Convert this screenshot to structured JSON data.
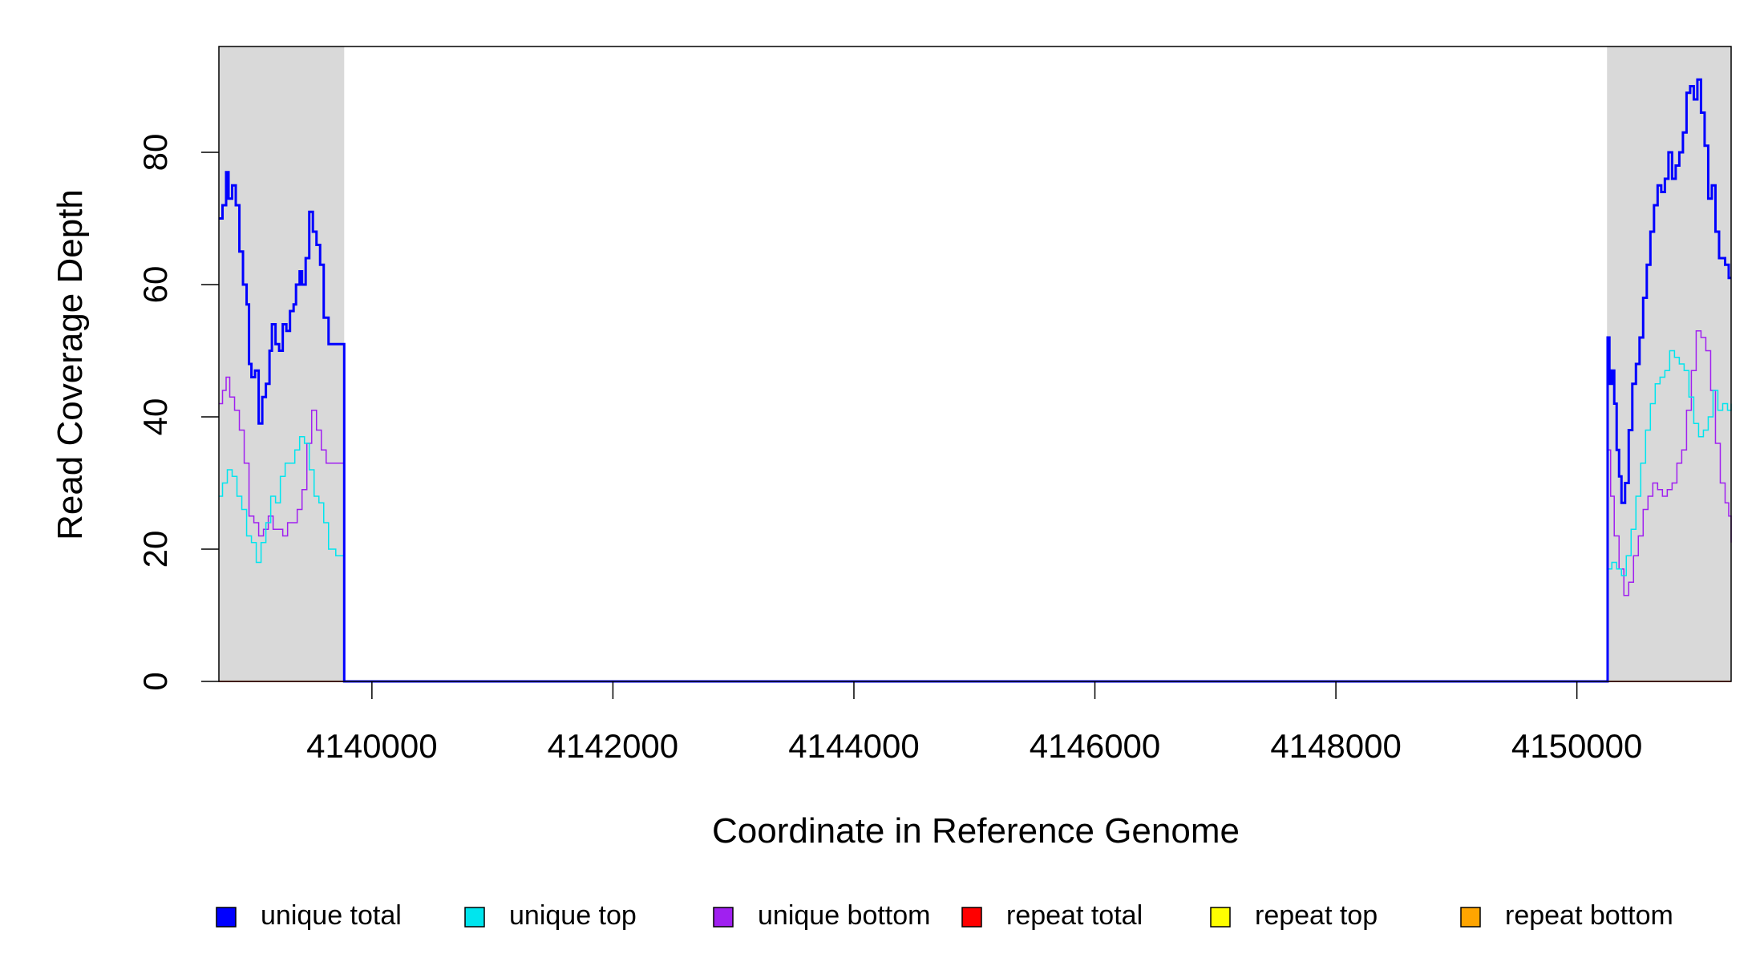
{
  "chart_data": {
    "type": "line",
    "xlabel": "Coordinate in Reference Genome",
    "ylabel": "Read Coverage Depth",
    "xlim": [
      4138730,
      4151280
    ],
    "ylim": [
      0,
      96
    ],
    "x_ticks": [
      4140000,
      4142000,
      4144000,
      4146000,
      4148000,
      4150000
    ],
    "y_ticks": [
      0,
      20,
      40,
      60,
      80
    ],
    "x_tick_labels": [
      "4140000",
      "4142000",
      "4144000",
      "4146000",
      "4148000",
      "4150000"
    ],
    "y_tick_labels": [
      "0",
      "20",
      "40",
      "60",
      "80"
    ],
    "shaded_regions": [
      [
        4138730,
        4139770
      ],
      [
        4150250,
        4151280
      ]
    ],
    "shade_color": "#d9d9d9",
    "series": [
      {
        "name": "unique total",
        "color": "#0000ff",
        "width": 3,
        "points": [
          [
            4138730,
            70
          ],
          [
            4138760,
            72
          ],
          [
            4138790,
            77
          ],
          [
            4138810,
            73
          ],
          [
            4138840,
            75
          ],
          [
            4138870,
            72
          ],
          [
            4138900,
            65
          ],
          [
            4138930,
            60
          ],
          [
            4138960,
            57
          ],
          [
            4138980,
            48
          ],
          [
            4139000,
            46
          ],
          [
            4139030,
            47
          ],
          [
            4139060,
            39
          ],
          [
            4139090,
            43
          ],
          [
            4139120,
            45
          ],
          [
            4139150,
            50
          ],
          [
            4139170,
            54
          ],
          [
            4139200,
            51
          ],
          [
            4139230,
            50
          ],
          [
            4139260,
            54
          ],
          [
            4139290,
            53
          ],
          [
            4139320,
            56
          ],
          [
            4139350,
            57
          ],
          [
            4139370,
            60
          ],
          [
            4139400,
            62
          ],
          [
            4139420,
            60
          ],
          [
            4139450,
            64
          ],
          [
            4139480,
            71
          ],
          [
            4139510,
            68
          ],
          [
            4139540,
            66
          ],
          [
            4139570,
            63
          ],
          [
            4139600,
            55
          ],
          [
            4139640,
            51
          ],
          [
            4139760,
            51
          ],
          [
            4139770,
            0
          ],
          [
            4150250,
            0
          ],
          [
            4150255,
            52
          ],
          [
            4150270,
            45
          ],
          [
            4150290,
            47
          ],
          [
            4150310,
            42
          ],
          [
            4150330,
            35
          ],
          [
            4150350,
            31
          ],
          [
            4150370,
            27
          ],
          [
            4150400,
            30
          ],
          [
            4150430,
            38
          ],
          [
            4150460,
            45
          ],
          [
            4150490,
            48
          ],
          [
            4150520,
            52
          ],
          [
            4150550,
            58
          ],
          [
            4150580,
            63
          ],
          [
            4150610,
            68
          ],
          [
            4150640,
            72
          ],
          [
            4150670,
            75
          ],
          [
            4150700,
            74
          ],
          [
            4150730,
            76
          ],
          [
            4150760,
            80
          ],
          [
            4150790,
            76
          ],
          [
            4150820,
            78
          ],
          [
            4150850,
            80
          ],
          [
            4150880,
            83
          ],
          [
            4150910,
            89
          ],
          [
            4150940,
            90
          ],
          [
            4150970,
            88
          ],
          [
            4151000,
            91
          ],
          [
            4151030,
            86
          ],
          [
            4151060,
            81
          ],
          [
            4151090,
            73
          ],
          [
            4151120,
            75
          ],
          [
            4151150,
            68
          ],
          [
            4151180,
            64
          ],
          [
            4151230,
            63
          ],
          [
            4151260,
            61
          ],
          [
            4151280,
            61
          ]
        ]
      },
      {
        "name": "unique top",
        "color": "#00e5ee",
        "width": 1.5,
        "points": [
          [
            4138730,
            28
          ],
          [
            4138760,
            30
          ],
          [
            4138800,
            32
          ],
          [
            4138840,
            31
          ],
          [
            4138880,
            28
          ],
          [
            4138920,
            26
          ],
          [
            4138960,
            22
          ],
          [
            4139000,
            21
          ],
          [
            4139040,
            18
          ],
          [
            4139080,
            21
          ],
          [
            4139120,
            24
          ],
          [
            4139160,
            28
          ],
          [
            4139200,
            27
          ],
          [
            4139240,
            31
          ],
          [
            4139280,
            33
          ],
          [
            4139320,
            33
          ],
          [
            4139360,
            35
          ],
          [
            4139400,
            37
          ],
          [
            4139440,
            36
          ],
          [
            4139480,
            32
          ],
          [
            4139520,
            28
          ],
          [
            4139560,
            27
          ],
          [
            4139600,
            24
          ],
          [
            4139640,
            20
          ],
          [
            4139700,
            19
          ],
          [
            4139760,
            19
          ],
          [
            4139770,
            0
          ],
          [
            4150250,
            0
          ],
          [
            4150255,
            17
          ],
          [
            4150290,
            18
          ],
          [
            4150330,
            17
          ],
          [
            4150370,
            16
          ],
          [
            4150410,
            19
          ],
          [
            4150450,
            23
          ],
          [
            4150490,
            28
          ],
          [
            4150530,
            33
          ],
          [
            4150570,
            38
          ],
          [
            4150610,
            42
          ],
          [
            4150650,
            45
          ],
          [
            4150690,
            46
          ],
          [
            4150730,
            47
          ],
          [
            4150770,
            50
          ],
          [
            4150810,
            49
          ],
          [
            4150850,
            48
          ],
          [
            4150890,
            47
          ],
          [
            4150930,
            43
          ],
          [
            4150970,
            39
          ],
          [
            4151010,
            37
          ],
          [
            4151050,
            38
          ],
          [
            4151090,
            40
          ],
          [
            4151130,
            44
          ],
          [
            4151170,
            41
          ],
          [
            4151210,
            42
          ],
          [
            4151250,
            41
          ],
          [
            4151280,
            42
          ]
        ]
      },
      {
        "name": "unique bottom",
        "color": "#a020f0",
        "width": 1.5,
        "points": [
          [
            4138730,
            42
          ],
          [
            4138760,
            44
          ],
          [
            4138790,
            46
          ],
          [
            4138820,
            43
          ],
          [
            4138860,
            41
          ],
          [
            4138900,
            38
          ],
          [
            4138940,
            33
          ],
          [
            4138980,
            25
          ],
          [
            4139020,
            24
          ],
          [
            4139060,
            22
          ],
          [
            4139100,
            23
          ],
          [
            4139140,
            25
          ],
          [
            4139180,
            23
          ],
          [
            4139220,
            23
          ],
          [
            4139260,
            22
          ],
          [
            4139300,
            24
          ],
          [
            4139340,
            24
          ],
          [
            4139380,
            26
          ],
          [
            4139420,
            29
          ],
          [
            4139460,
            36
          ],
          [
            4139500,
            41
          ],
          [
            4139540,
            38
          ],
          [
            4139580,
            35
          ],
          [
            4139620,
            33
          ],
          [
            4139700,
            33
          ],
          [
            4139760,
            33
          ],
          [
            4139770,
            0
          ],
          [
            4150250,
            0
          ],
          [
            4150255,
            35
          ],
          [
            4150280,
            28
          ],
          [
            4150310,
            22
          ],
          [
            4150350,
            17
          ],
          [
            4150390,
            13
          ],
          [
            4150430,
            15
          ],
          [
            4150470,
            19
          ],
          [
            4150510,
            22
          ],
          [
            4150550,
            26
          ],
          [
            4150590,
            28
          ],
          [
            4150630,
            30
          ],
          [
            4150670,
            29
          ],
          [
            4150710,
            28
          ],
          [
            4150750,
            29
          ],
          [
            4150790,
            30
          ],
          [
            4150830,
            33
          ],
          [
            4150870,
            35
          ],
          [
            4150910,
            41
          ],
          [
            4150950,
            47
          ],
          [
            4150990,
            53
          ],
          [
            4151030,
            52
          ],
          [
            4151070,
            50
          ],
          [
            4151110,
            44
          ],
          [
            4151150,
            36
          ],
          [
            4151190,
            30
          ],
          [
            4151230,
            27
          ],
          [
            4151260,
            25
          ],
          [
            4151280,
            21
          ]
        ]
      },
      {
        "name": "repeat total",
        "color": "#ff0000",
        "width": 1.5,
        "points": [
          [
            4138730,
            0
          ],
          [
            4151280,
            0
          ]
        ]
      },
      {
        "name": "repeat top",
        "color": "#ffff00",
        "width": 1.5,
        "points": [
          [
            4138730,
            0
          ],
          [
            4151280,
            0
          ]
        ]
      },
      {
        "name": "repeat bottom",
        "color": "#ffa500",
        "width": 1.5,
        "points": [
          [
            4138730,
            0
          ],
          [
            4151280,
            0
          ]
        ]
      }
    ],
    "legend": {
      "placement": "bottom",
      "items": [
        {
          "label": "unique total",
          "color": "#0000ff"
        },
        {
          "label": "unique top",
          "color": "#00e5ee"
        },
        {
          "label": "unique bottom",
          "color": "#a020f0"
        },
        {
          "label": "repeat total",
          "color": "#ff0000"
        },
        {
          "label": "repeat top",
          "color": "#ffff00"
        },
        {
          "label": "repeat bottom",
          "color": "#ffa500"
        }
      ]
    },
    "grid": false
  }
}
